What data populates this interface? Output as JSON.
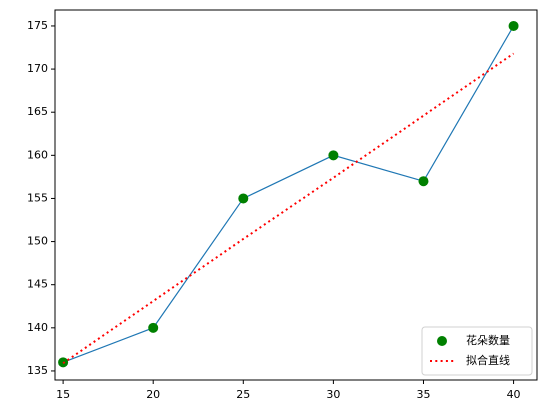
{
  "chart_data": {
    "type": "line",
    "x": [
      15,
      20,
      25,
      30,
      35,
      40
    ],
    "series": [
      {
        "name": "花朵数量",
        "color": "green",
        "line_color": "#1f77b4",
        "marker": "circle",
        "values": [
          136,
          140,
          155,
          160,
          157,
          175
        ]
      },
      {
        "name": "拟合直线",
        "color": "red",
        "style": "dotted",
        "values": [
          135.9,
          143.1,
          150.3,
          157.4,
          164.6,
          171.8
        ]
      }
    ],
    "xlim": [
      14.55,
      41.3
    ],
    "xticks": [
      15,
      20,
      25,
      30,
      35,
      40
    ],
    "ylim": [
      133.95,
      176.85
    ],
    "yticks": [
      135,
      140,
      145,
      150,
      155,
      160,
      165,
      170,
      175
    ],
    "legend": "lower right"
  }
}
